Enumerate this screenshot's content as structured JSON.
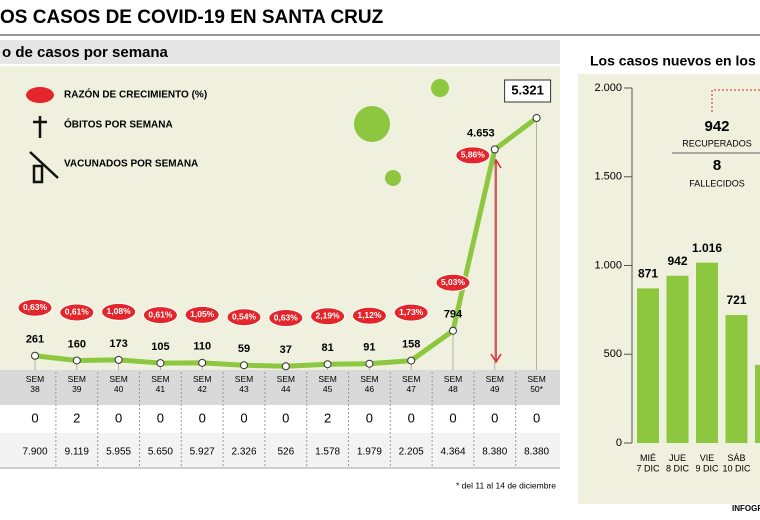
{
  "title": "OS CASOS DE COVID-19 EN SANTA CRUZ",
  "footer": "INFOGRA",
  "chart_data": [
    {
      "type": "line",
      "title": "o de casos por semana",
      "categories": [
        "SEM\n38",
        "SEM\n39",
        "SEM\n40",
        "SEM\n41",
        "SEM\n42",
        "SEM\n43",
        "SEM\n44",
        "SEM\n45",
        "SEM\n46",
        "SEM\n47",
        "SEM\n48",
        "SEM\n49",
        "SEM\n50*"
      ],
      "values": [
        261,
        160,
        173,
        105,
        110,
        59,
        37,
        81,
        91,
        158,
        794,
        4653,
        5321
      ],
      "value_labels": [
        "261",
        "160",
        "173",
        "105",
        "110",
        "59",
        "37",
        "81",
        "91",
        "158",
        "794",
        "4.653",
        "5.321"
      ],
      "color": "#8dc63f",
      "legend": [
        "RAZÓN DE CRECIMIENTO (%)",
        "ÓBITOS POR SEMANA",
        "VACUNADOS POR SEMANA"
      ],
      "growth_rates": [
        "0,63%",
        "0,61%",
        "1,08%",
        "0,61%",
        "1,05%",
        "0,54%",
        "0,63%",
        "2,19%",
        "1,12%",
        "1,73%",
        "5,03%",
        "5,86%"
      ],
      "deaths": [
        0,
        2,
        0,
        0,
        0,
        0,
        0,
        2,
        0,
        0,
        0,
        0,
        0
      ],
      "vaccinated": [
        "7.900",
        "9.119",
        "5.955",
        "5.650",
        "5.927",
        "2.326",
        "526",
        "1.578",
        "1.979",
        "2.205",
        "4.364",
        "8.380",
        "8.380"
      ],
      "note": "* del 11 al 14 de diciembre"
    },
    {
      "type": "bar",
      "title": "Los casos nuevos en los",
      "categories": [
        "MIÉ\n7 DIC",
        "JUE\n8 DIC",
        "VIE\n9 DIC",
        "SÁB\n10 DIC",
        null
      ],
      "values": [
        871,
        942,
        1016,
        721,
        440
      ],
      "value_labels": [
        "871",
        "942",
        "1.016",
        "721",
        null
      ],
      "color": "#8dc63f",
      "ylim": [
        0,
        2000
      ],
      "yticks": [
        0,
        500,
        {
          "value": 1000,
          "label": "1.000"
        },
        {
          "value": 1500,
          "label": "1.500"
        },
        {
          "value": 2000,
          "label": "2.000"
        }
      ],
      "annotations": [
        "942",
        "RECUPERADOS",
        "8",
        "FALLECIDOS"
      ]
    }
  ]
}
